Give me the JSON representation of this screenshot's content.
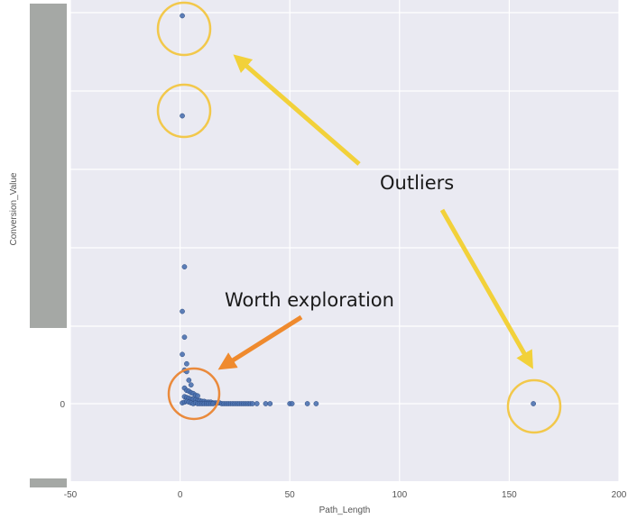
{
  "chart_data": {
    "type": "scatter",
    "title": "",
    "xlabel": "Path_Length",
    "ylabel": "Conversion_Value",
    "xlim": [
      -50,
      200
    ],
    "x_ticks": [
      -50,
      0,
      50,
      100,
      150,
      200
    ],
    "y_ticks": [
      0
    ],
    "grid": true,
    "colors": {
      "background": "#eaeaf2",
      "grid": "#ffffff",
      "point": "#4c72b0",
      "point_edge": "#2b4a80",
      "outlier_circle": "#f2c84b",
      "outlier_arrow": "#f2d13a",
      "explore_circle": "#ea8a3c",
      "explore_arrow": "#ef8a2e",
      "redaction": "#a5a8a5"
    },
    "series": [
      {
        "points": [
          [
            1,
            496
          ],
          [
            1,
            368
          ],
          [
            2,
            175
          ],
          [
            1,
            118
          ],
          [
            2,
            85
          ],
          [
            1,
            63
          ],
          [
            3,
            51
          ],
          [
            2,
            43
          ],
          [
            3,
            41
          ],
          [
            4,
            30
          ],
          [
            5,
            24
          ],
          [
            2,
            20
          ],
          [
            3,
            17
          ],
          [
            4,
            16
          ],
          [
            5,
            14
          ],
          [
            6,
            13
          ],
          [
            7,
            11
          ],
          [
            8,
            10
          ],
          [
            2,
            9
          ],
          [
            3,
            8
          ],
          [
            4,
            7
          ],
          [
            5,
            6
          ],
          [
            6,
            6
          ],
          [
            7,
            5
          ],
          [
            8,
            4
          ],
          [
            9,
            4
          ],
          [
            10,
            3
          ],
          [
            11,
            3
          ],
          [
            12,
            2
          ],
          [
            13,
            2
          ],
          [
            14,
            2
          ],
          [
            15,
            1
          ],
          [
            16,
            1
          ],
          [
            17,
            1
          ],
          [
            18,
            1
          ],
          [
            19,
            0
          ],
          [
            20,
            0
          ],
          [
            21,
            0
          ],
          [
            22,
            0
          ],
          [
            23,
            0
          ],
          [
            24,
            0
          ],
          [
            25,
            0
          ],
          [
            26,
            0
          ],
          [
            27,
            0
          ],
          [
            28,
            0
          ],
          [
            29,
            0
          ],
          [
            30,
            0
          ],
          [
            31,
            0
          ],
          [
            32,
            0
          ],
          [
            33,
            0
          ],
          [
            35,
            0
          ],
          [
            39,
            0
          ],
          [
            41,
            0
          ],
          [
            50,
            0
          ],
          [
            51,
            0
          ],
          [
            58,
            0
          ],
          [
            62,
            0
          ],
          [
            1,
            1
          ],
          [
            2,
            2
          ],
          [
            3,
            3
          ],
          [
            4,
            2
          ],
          [
            5,
            1
          ],
          [
            6,
            0
          ],
          [
            7,
            1
          ],
          [
            8,
            0
          ],
          [
            9,
            0
          ],
          [
            10,
            0
          ],
          [
            11,
            0
          ],
          [
            12,
            0
          ],
          [
            13,
            0
          ],
          [
            14,
            0
          ],
          [
            15,
            0
          ],
          [
            161,
            0
          ]
        ]
      }
    ],
    "annotations": [
      {
        "text": "Outliers",
        "kind": "outlier"
      },
      {
        "text": "Worth exploration",
        "kind": "explore"
      }
    ]
  }
}
